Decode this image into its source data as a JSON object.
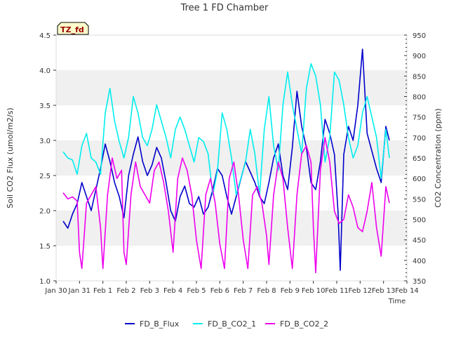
{
  "chart_data": {
    "type": "line",
    "title": "Tree 1 FD Chamber",
    "xlabel": "Time",
    "ylabel": "Soil CO2 Flux (umol/m2/s)",
    "y2label": "CO2 Concentration (ppm)",
    "tag": "TZ_fd",
    "x_ticks": [
      "Jan 30",
      "Jan 31",
      "Feb 1",
      "Feb 2",
      "Feb 3",
      "Feb 4",
      "Feb 5",
      "Feb 6",
      "Feb 7",
      "Feb 8",
      "Feb 9",
      "Feb 10",
      "Feb 11",
      "Feb 12",
      "Feb 13",
      "Feb 14"
    ],
    "xlim": [
      0,
      15
    ],
    "ylim": [
      1.0,
      4.5
    ],
    "y_ticks": [
      "1.0",
      "1.5",
      "2.0",
      "2.5",
      "3.0",
      "3.5",
      "4.0",
      "4.5"
    ],
    "y2lim": [
      350,
      950
    ],
    "y2_ticks": [
      "350",
      "400",
      "450",
      "500",
      "550",
      "600",
      "650",
      "700",
      "750",
      "800",
      "850",
      "900",
      "950"
    ],
    "grid": "horizontal bands",
    "legend_position": "bottom",
    "series": [
      {
        "name": "FD_B_Flux",
        "axis": "left",
        "color": "#0000cc",
        "points": [
          [
            0.3,
            1.85
          ],
          [
            0.5,
            1.75
          ],
          [
            0.7,
            1.95
          ],
          [
            0.9,
            2.1
          ],
          [
            1.1,
            2.4
          ],
          [
            1.3,
            2.2
          ],
          [
            1.5,
            2.0
          ],
          [
            1.7,
            2.3
          ],
          [
            1.9,
            2.6
          ],
          [
            2.1,
            2.95
          ],
          [
            2.3,
            2.7
          ],
          [
            2.5,
            2.4
          ],
          [
            2.7,
            2.2
          ],
          [
            2.9,
            1.9
          ],
          [
            3.1,
            2.5
          ],
          [
            3.3,
            2.8
          ],
          [
            3.5,
            3.05
          ],
          [
            3.7,
            2.7
          ],
          [
            3.9,
            2.5
          ],
          [
            4.1,
            2.65
          ],
          [
            4.3,
            2.9
          ],
          [
            4.5,
            2.75
          ],
          [
            4.7,
            2.4
          ],
          [
            4.9,
            2.0
          ],
          [
            5.1,
            1.85
          ],
          [
            5.3,
            2.2
          ],
          [
            5.5,
            2.35
          ],
          [
            5.7,
            2.1
          ],
          [
            5.9,
            2.05
          ],
          [
            6.1,
            2.2
          ],
          [
            6.3,
            1.95
          ],
          [
            6.5,
            2.05
          ],
          [
            6.7,
            2.3
          ],
          [
            6.9,
            2.6
          ],
          [
            7.1,
            2.5
          ],
          [
            7.3,
            2.2
          ],
          [
            7.5,
            1.95
          ],
          [
            7.7,
            2.2
          ],
          [
            7.9,
            2.45
          ],
          [
            8.1,
            2.7
          ],
          [
            8.3,
            2.55
          ],
          [
            8.5,
            2.4
          ],
          [
            8.7,
            2.2
          ],
          [
            8.9,
            2.1
          ],
          [
            9.1,
            2.4
          ],
          [
            9.3,
            2.75
          ],
          [
            9.5,
            2.95
          ],
          [
            9.7,
            2.5
          ],
          [
            9.9,
            2.3
          ],
          [
            10.1,
            2.9
          ],
          [
            10.3,
            3.7
          ],
          [
            10.5,
            3.2
          ],
          [
            10.7,
            2.9
          ],
          [
            10.9,
            2.4
          ],
          [
            11.1,
            2.3
          ],
          [
            11.3,
            2.7
          ],
          [
            11.5,
            3.3
          ],
          [
            11.7,
            3.1
          ],
          [
            11.9,
            2.8
          ],
          [
            12.05,
            2.0
          ],
          [
            12.15,
            1.15
          ],
          [
            12.3,
            2.8
          ],
          [
            12.5,
            3.2
          ],
          [
            12.7,
            3.0
          ],
          [
            12.9,
            3.5
          ],
          [
            13.1,
            4.3
          ],
          [
            13.3,
            3.1
          ],
          [
            13.5,
            2.85
          ],
          [
            13.7,
            2.6
          ],
          [
            13.9,
            2.4
          ],
          [
            14.1,
            3.2
          ],
          [
            14.25,
            3.0
          ]
        ]
      },
      {
        "name": "FD_B_CO2_1",
        "axis": "right",
        "color": "#00eeee",
        "points": [
          [
            0.3,
            665
          ],
          [
            0.5,
            650
          ],
          [
            0.7,
            645
          ],
          [
            0.9,
            610
          ],
          [
            1.1,
            680
          ],
          [
            1.3,
            710
          ],
          [
            1.5,
            650
          ],
          [
            1.7,
            640
          ],
          [
            1.9,
            610
          ],
          [
            2.1,
            760
          ],
          [
            2.3,
            820
          ],
          [
            2.5,
            740
          ],
          [
            2.7,
            690
          ],
          [
            2.9,
            650
          ],
          [
            3.1,
            700
          ],
          [
            3.3,
            800
          ],
          [
            3.5,
            760
          ],
          [
            3.7,
            700
          ],
          [
            3.9,
            680
          ],
          [
            4.1,
            720
          ],
          [
            4.3,
            780
          ],
          [
            4.5,
            740
          ],
          [
            4.7,
            700
          ],
          [
            4.9,
            650
          ],
          [
            5.1,
            720
          ],
          [
            5.3,
            750
          ],
          [
            5.5,
            720
          ],
          [
            5.7,
            680
          ],
          [
            5.9,
            640
          ],
          [
            6.1,
            700
          ],
          [
            6.3,
            690
          ],
          [
            6.5,
            660
          ],
          [
            6.7,
            560
          ],
          [
            6.9,
            620
          ],
          [
            7.1,
            760
          ],
          [
            7.3,
            720
          ],
          [
            7.5,
            650
          ],
          [
            7.7,
            560
          ],
          [
            7.9,
            600
          ],
          [
            8.1,
            640
          ],
          [
            8.3,
            720
          ],
          [
            8.5,
            660
          ],
          [
            8.7,
            560
          ],
          [
            8.9,
            720
          ],
          [
            9.1,
            800
          ],
          [
            9.3,
            680
          ],
          [
            9.5,
            620
          ],
          [
            9.7,
            780
          ],
          [
            9.9,
            860
          ],
          [
            10.1,
            780
          ],
          [
            10.3,
            720
          ],
          [
            10.5,
            660
          ],
          [
            10.7,
            820
          ],
          [
            10.9,
            880
          ],
          [
            11.1,
            850
          ],
          [
            11.3,
            780
          ],
          [
            11.5,
            640
          ],
          [
            11.7,
            700
          ],
          [
            11.9,
            860
          ],
          [
            12.1,
            840
          ],
          [
            12.3,
            780
          ],
          [
            12.5,
            700
          ],
          [
            12.7,
            650
          ],
          [
            12.9,
            680
          ],
          [
            13.1,
            760
          ],
          [
            13.3,
            800
          ],
          [
            13.5,
            750
          ],
          [
            13.7,
            700
          ],
          [
            13.9,
            600
          ],
          [
            14.1,
            720
          ],
          [
            14.25,
            650
          ]
        ]
      },
      {
        "name": "FD_B_CO2_2",
        "axis": "right",
        "color": "#ee00ee",
        "points": [
          [
            0.3,
            565
          ],
          [
            0.5,
            550
          ],
          [
            0.7,
            555
          ],
          [
            0.9,
            545
          ],
          [
            1.0,
            420
          ],
          [
            1.1,
            380
          ],
          [
            1.3,
            540
          ],
          [
            1.5,
            560
          ],
          [
            1.7,
            580
          ],
          [
            1.9,
            480
          ],
          [
            2.0,
            380
          ],
          [
            2.2,
            560
          ],
          [
            2.4,
            650
          ],
          [
            2.6,
            600
          ],
          [
            2.8,
            620
          ],
          [
            2.9,
            420
          ],
          [
            3.0,
            390
          ],
          [
            3.2,
            560
          ],
          [
            3.4,
            640
          ],
          [
            3.6,
            580
          ],
          [
            3.8,
            560
          ],
          [
            4.0,
            540
          ],
          [
            4.2,
            620
          ],
          [
            4.4,
            640
          ],
          [
            4.6,
            590
          ],
          [
            4.8,
            520
          ],
          [
            5.0,
            420
          ],
          [
            5.2,
            600
          ],
          [
            5.4,
            650
          ],
          [
            5.6,
            620
          ],
          [
            5.8,
            560
          ],
          [
            6.0,
            450
          ],
          [
            6.2,
            380
          ],
          [
            6.4,
            560
          ],
          [
            6.6,
            600
          ],
          [
            6.8,
            540
          ],
          [
            7.0,
            440
          ],
          [
            7.2,
            380
          ],
          [
            7.4,
            600
          ],
          [
            7.6,
            640
          ],
          [
            7.8,
            560
          ],
          [
            8.0,
            450
          ],
          [
            8.2,
            380
          ],
          [
            8.4,
            560
          ],
          [
            8.6,
            580
          ],
          [
            8.8,
            540
          ],
          [
            9.0,
            460
          ],
          [
            9.1,
            390
          ],
          [
            9.3,
            560
          ],
          [
            9.5,
            640
          ],
          [
            9.7,
            600
          ],
          [
            9.9,
            480
          ],
          [
            10.1,
            380
          ],
          [
            10.3,
            560
          ],
          [
            10.5,
            660
          ],
          [
            10.7,
            680
          ],
          [
            10.9,
            640
          ],
          [
            11.0,
            480
          ],
          [
            11.1,
            370
          ],
          [
            11.3,
            620
          ],
          [
            11.5,
            700
          ],
          [
            11.7,
            640
          ],
          [
            11.9,
            520
          ],
          [
            12.1,
            490
          ],
          [
            12.3,
            500
          ],
          [
            12.5,
            560
          ],
          [
            12.7,
            530
          ],
          [
            12.9,
            480
          ],
          [
            13.1,
            470
          ],
          [
            13.3,
            520
          ],
          [
            13.5,
            590
          ],
          [
            13.7,
            480
          ],
          [
            13.9,
            410
          ],
          [
            14.1,
            580
          ],
          [
            14.25,
            540
          ]
        ]
      }
    ]
  }
}
